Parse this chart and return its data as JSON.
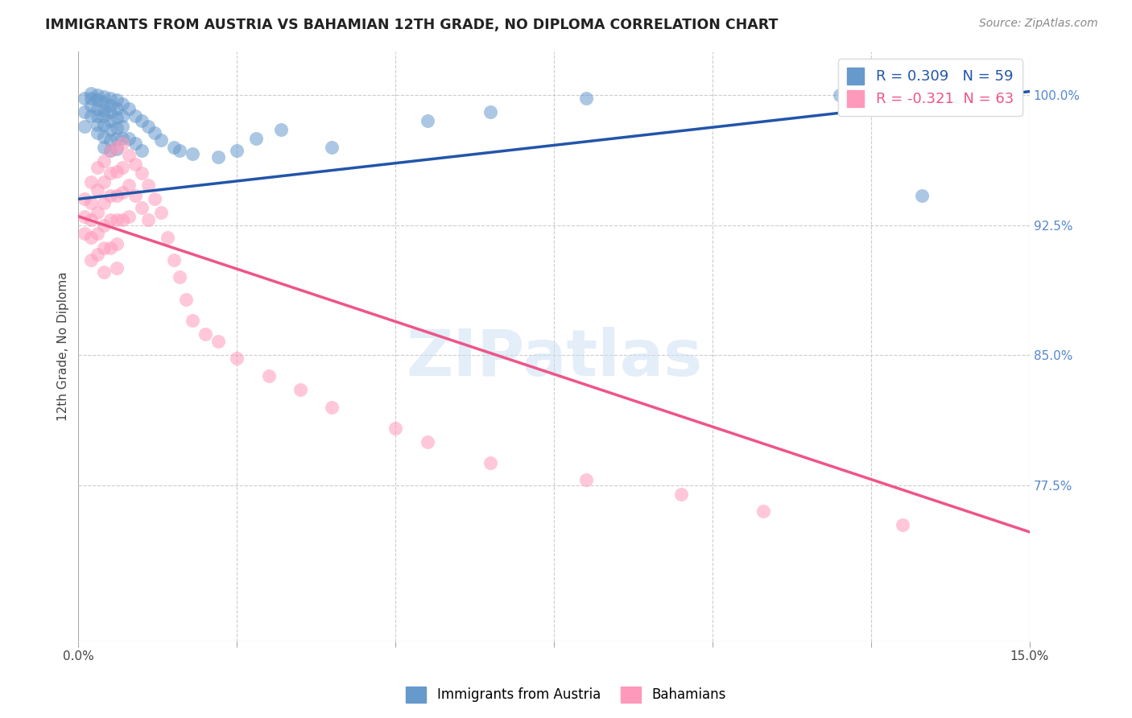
{
  "title": "IMMIGRANTS FROM AUSTRIA VS BAHAMIAN 12TH GRADE, NO DIPLOMA CORRELATION CHART",
  "source": "Source: ZipAtlas.com",
  "ylabel_label": "12th Grade, No Diploma",
  "legend_blue_label": "R = 0.309   N = 59",
  "legend_pink_label": "R = -0.321  N = 63",
  "legend_bottom_blue": "Immigrants from Austria",
  "legend_bottom_pink": "Bahamians",
  "watermark": "ZIPatlas",
  "blue_color": "#6699CC",
  "pink_color": "#FF99BB",
  "blue_line_color": "#2255AA",
  "pink_line_color": "#EE5588",
  "x_min": 0.0,
  "x_max": 0.15,
  "y_min": 0.685,
  "y_max": 1.025,
  "yticks": [
    0.775,
    0.85,
    0.925,
    1.0
  ],
  "ytick_labels": [
    "77.5%",
    "85.0%",
    "92.5%",
    "100.0%"
  ],
  "blue_line_x0": 0.0,
  "blue_line_y0": 0.94,
  "blue_line_x1": 0.15,
  "blue_line_y1": 1.002,
  "pink_line_x0": 0.0,
  "pink_line_y0": 0.93,
  "pink_line_x1": 0.15,
  "pink_line_y1": 0.748,
  "blue_scatter_x": [
    0.001,
    0.001,
    0.001,
    0.002,
    0.002,
    0.002,
    0.002,
    0.003,
    0.003,
    0.003,
    0.003,
    0.003,
    0.003,
    0.004,
    0.004,
    0.004,
    0.004,
    0.004,
    0.004,
    0.004,
    0.005,
    0.005,
    0.005,
    0.005,
    0.005,
    0.005,
    0.005,
    0.006,
    0.006,
    0.006,
    0.006,
    0.006,
    0.006,
    0.007,
    0.007,
    0.007,
    0.007,
    0.008,
    0.008,
    0.009,
    0.009,
    0.01,
    0.01,
    0.011,
    0.012,
    0.013,
    0.015,
    0.016,
    0.018,
    0.022,
    0.025,
    0.028,
    0.032,
    0.04,
    0.055,
    0.065,
    0.08,
    0.12,
    0.133
  ],
  "blue_scatter_y": [
    0.998,
    0.99,
    0.982,
    1.001,
    0.998,
    0.994,
    0.988,
    1.0,
    0.997,
    0.992,
    0.988,
    0.983,
    0.978,
    0.999,
    0.996,
    0.991,
    0.988,
    0.983,
    0.976,
    0.97,
    0.998,
    0.994,
    0.99,
    0.985,
    0.98,
    0.974,
    0.968,
    0.997,
    0.992,
    0.987,
    0.981,
    0.975,
    0.969,
    0.995,
    0.988,
    0.982,
    0.975,
    0.992,
    0.975,
    0.988,
    0.972,
    0.985,
    0.968,
    0.982,
    0.978,
    0.974,
    0.97,
    0.968,
    0.966,
    0.964,
    0.968,
    0.975,
    0.98,
    0.97,
    0.985,
    0.99,
    0.998,
    1.0,
    0.942
  ],
  "pink_scatter_x": [
    0.001,
    0.001,
    0.001,
    0.002,
    0.002,
    0.002,
    0.002,
    0.002,
    0.003,
    0.003,
    0.003,
    0.003,
    0.003,
    0.004,
    0.004,
    0.004,
    0.004,
    0.004,
    0.004,
    0.005,
    0.005,
    0.005,
    0.005,
    0.005,
    0.006,
    0.006,
    0.006,
    0.006,
    0.006,
    0.006,
    0.007,
    0.007,
    0.007,
    0.007,
    0.008,
    0.008,
    0.008,
    0.009,
    0.009,
    0.01,
    0.01,
    0.011,
    0.011,
    0.012,
    0.013,
    0.014,
    0.015,
    0.016,
    0.017,
    0.018,
    0.02,
    0.022,
    0.025,
    0.03,
    0.035,
    0.04,
    0.05,
    0.055,
    0.065,
    0.08,
    0.095,
    0.108,
    0.13
  ],
  "pink_scatter_y": [
    0.94,
    0.93,
    0.92,
    0.95,
    0.938,
    0.928,
    0.918,
    0.905,
    0.958,
    0.945,
    0.932,
    0.92,
    0.908,
    0.962,
    0.95,
    0.938,
    0.925,
    0.912,
    0.898,
    0.968,
    0.955,
    0.942,
    0.928,
    0.912,
    0.97,
    0.956,
    0.942,
    0.928,
    0.914,
    0.9,
    0.972,
    0.958,
    0.944,
    0.928,
    0.965,
    0.948,
    0.93,
    0.96,
    0.942,
    0.955,
    0.935,
    0.948,
    0.928,
    0.94,
    0.932,
    0.918,
    0.905,
    0.895,
    0.882,
    0.87,
    0.862,
    0.858,
    0.848,
    0.838,
    0.83,
    0.82,
    0.808,
    0.8,
    0.788,
    0.778,
    0.77,
    0.76,
    0.752
  ]
}
